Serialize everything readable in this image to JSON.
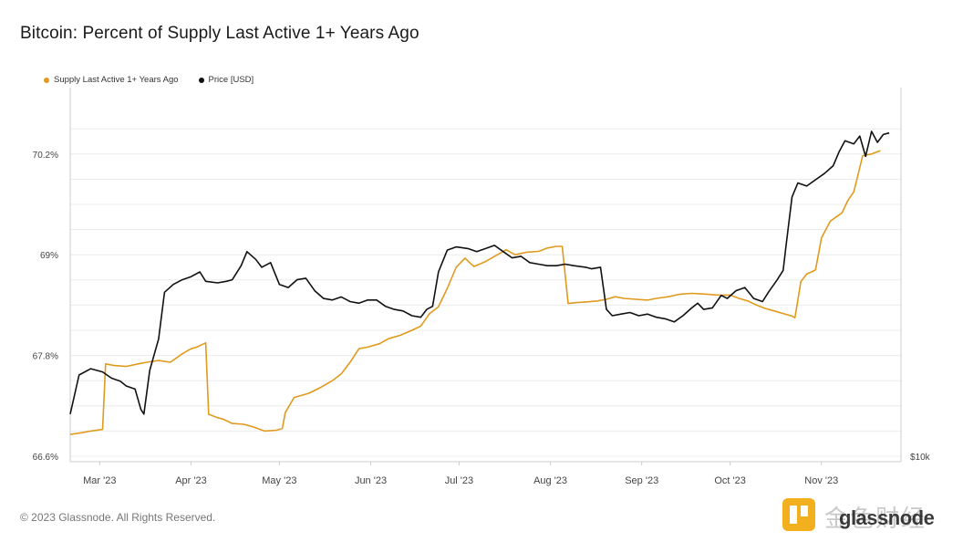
{
  "title": "Bitcoin: Percent of Supply Last Active 1+ Years Ago",
  "copyright": "© 2023 Glassnode. All Rights Reserved.",
  "watermark": {
    "cn_text": "金色财经",
    "brand_text": "glassnode"
  },
  "colors": {
    "supply": "#e09a1e",
    "price": "#111111",
    "grid": "#ececec",
    "axis": "#cccccc"
  },
  "chart_data": {
    "type": "line",
    "legend": [
      {
        "name": "Supply Last Active 1+ Years Ago",
        "color": "#e09a1e"
      },
      {
        "name": "Price [USD]",
        "color": "#111111"
      }
    ],
    "y_left": {
      "ticks": [
        "70.2%",
        "69%",
        "67.8%",
        "66.6%"
      ],
      "tick_values": [
        70.2,
        69.0,
        67.8,
        66.6
      ],
      "range": [
        66.6,
        70.6
      ]
    },
    "y_right": {
      "ticks": [
        "$10k"
      ]
    },
    "x_ticks": [
      "Mar '23",
      "Apr '23",
      "May '23",
      "Jun '23",
      "Jul '23",
      "Aug '23",
      "Sep '23",
      "Oct '23",
      "Nov '23"
    ],
    "x_tick_days": [
      0,
      31,
      61,
      92,
      122,
      153,
      184,
      214,
      245
    ],
    "x_range_days": [
      -10,
      272
    ],
    "price_range": [
      17000,
      38500
    ],
    "series": [
      {
        "name": "Supply Last Active 1+ Years Ago",
        "values": [
          [
            -10,
            66.86
          ],
          [
            -6,
            66.88
          ],
          [
            -3,
            66.9
          ],
          [
            1,
            66.92
          ],
          [
            2,
            67.7
          ],
          [
            5,
            67.68
          ],
          [
            9,
            67.67
          ],
          [
            13,
            67.7
          ],
          [
            16,
            67.72
          ],
          [
            20,
            67.74
          ],
          [
            24,
            67.72
          ],
          [
            28,
            67.82
          ],
          [
            31,
            67.88
          ],
          [
            33,
            67.9
          ],
          [
            36,
            67.95
          ],
          [
            37,
            67.1
          ],
          [
            40,
            67.06
          ],
          [
            42,
            67.04
          ],
          [
            45,
            66.99
          ],
          [
            49,
            66.98
          ],
          [
            52,
            66.95
          ],
          [
            56,
            66.9
          ],
          [
            60,
            66.91
          ],
          [
            62,
            66.93
          ],
          [
            63,
            67.12
          ],
          [
            66,
            67.3
          ],
          [
            71,
            67.35
          ],
          [
            75,
            67.42
          ],
          [
            79,
            67.5
          ],
          [
            82,
            67.58
          ],
          [
            85,
            67.72
          ],
          [
            88,
            67.88
          ],
          [
            91,
            67.9
          ],
          [
            95,
            67.94
          ],
          [
            98,
            68.0
          ],
          [
            102,
            68.04
          ],
          [
            106,
            68.1
          ],
          [
            109,
            68.15
          ],
          [
            112,
            68.3
          ],
          [
            115,
            68.38
          ],
          [
            118,
            68.6
          ],
          [
            121,
            68.85
          ],
          [
            124,
            68.96
          ],
          [
            127,
            68.86
          ],
          [
            131,
            68.92
          ],
          [
            135,
            69.0
          ],
          [
            138,
            69.06
          ],
          [
            141,
            69.0
          ],
          [
            145,
            69.03
          ],
          [
            149,
            69.04
          ],
          [
            152,
            69.08
          ],
          [
            155,
            69.1
          ],
          [
            157,
            69.1
          ],
          [
            159,
            68.42
          ],
          [
            162,
            68.43
          ],
          [
            166,
            68.44
          ],
          [
            169,
            68.45
          ],
          [
            172,
            68.47
          ],
          [
            175,
            68.5
          ],
          [
            178,
            68.48
          ],
          [
            182,
            68.47
          ],
          [
            186,
            68.46
          ],
          [
            189,
            68.48
          ],
          [
            193,
            68.5
          ],
          [
            197,
            68.53
          ],
          [
            201,
            68.54
          ],
          [
            206,
            68.53
          ],
          [
            210,
            68.52
          ],
          [
            214,
            68.52
          ],
          [
            217,
            68.48
          ],
          [
            220,
            68.45
          ],
          [
            223,
            68.4
          ],
          [
            226,
            68.36
          ],
          [
            229,
            68.33
          ],
          [
            232,
            68.3
          ],
          [
            235,
            68.27
          ],
          [
            236,
            68.25
          ],
          [
            238,
            68.68
          ],
          [
            240,
            68.77
          ],
          [
            243,
            68.82
          ],
          [
            245,
            69.2
          ],
          [
            248,
            69.4
          ],
          [
            250,
            69.45
          ],
          [
            252,
            69.5
          ],
          [
            254,
            69.65
          ],
          [
            256,
            69.75
          ],
          [
            259,
            70.18
          ],
          [
            262,
            70.2
          ],
          [
            265,
            70.24
          ]
        ]
      },
      {
        "name": "Price [USD]",
        "values": [
          [
            -10,
            19700
          ],
          [
            -7,
            22200
          ],
          [
            -3,
            22600
          ],
          [
            1,
            22400
          ],
          [
            4,
            22000
          ],
          [
            7,
            21800
          ],
          [
            9,
            21500
          ],
          [
            12,
            21300
          ],
          [
            14,
            20000
          ],
          [
            15,
            19700
          ],
          [
            17,
            22500
          ],
          [
            20,
            24500
          ],
          [
            22,
            27500
          ],
          [
            25,
            28000
          ],
          [
            28,
            28300
          ],
          [
            31,
            28500
          ],
          [
            34,
            28800
          ],
          [
            36,
            28200
          ],
          [
            40,
            28100
          ],
          [
            43,
            28200
          ],
          [
            45,
            28300
          ],
          [
            48,
            29200
          ],
          [
            50,
            30100
          ],
          [
            53,
            29600
          ],
          [
            55,
            29100
          ],
          [
            58,
            29400
          ],
          [
            61,
            28000
          ],
          [
            64,
            27800
          ],
          [
            67,
            28300
          ],
          [
            70,
            28400
          ],
          [
            73,
            27600
          ],
          [
            76,
            27100
          ],
          [
            79,
            27000
          ],
          [
            82,
            27200
          ],
          [
            85,
            26900
          ],
          [
            88,
            26800
          ],
          [
            91,
            27000
          ],
          [
            94,
            27000
          ],
          [
            97,
            26600
          ],
          [
            100,
            26400
          ],
          [
            103,
            26300
          ],
          [
            106,
            26000
          ],
          [
            109,
            25900
          ],
          [
            111,
            26400
          ],
          [
            113,
            26600
          ],
          [
            115,
            28800
          ],
          [
            118,
            30200
          ],
          [
            121,
            30400
          ],
          [
            125,
            30300
          ],
          [
            128,
            30100
          ],
          [
            131,
            30300
          ],
          [
            134,
            30500
          ],
          [
            137,
            30100
          ],
          [
            140,
            29700
          ],
          [
            143,
            29800
          ],
          [
            146,
            29400
          ],
          [
            149,
            29300
          ],
          [
            152,
            29200
          ],
          [
            155,
            29200
          ],
          [
            158,
            29300
          ],
          [
            161,
            29200
          ],
          [
            165,
            29100
          ],
          [
            167,
            29000
          ],
          [
            170,
            29100
          ],
          [
            172,
            26400
          ],
          [
            174,
            26000
          ],
          [
            177,
            26100
          ],
          [
            180,
            26200
          ],
          [
            183,
            26000
          ],
          [
            186,
            26100
          ],
          [
            189,
            25900
          ],
          [
            192,
            25800
          ],
          [
            195,
            25600
          ],
          [
            198,
            26000
          ],
          [
            201,
            26500
          ],
          [
            203,
            26800
          ],
          [
            205,
            26400
          ],
          [
            208,
            26500
          ],
          [
            211,
            27300
          ],
          [
            213,
            27100
          ],
          [
            216,
            27600
          ],
          [
            219,
            27800
          ],
          [
            222,
            27100
          ],
          [
            225,
            26900
          ],
          [
            227,
            27500
          ],
          [
            230,
            28300
          ],
          [
            232,
            28900
          ],
          [
            233,
            30500
          ],
          [
            235,
            33600
          ],
          [
            237,
            34500
          ],
          [
            240,
            34300
          ],
          [
            243,
            34700
          ],
          [
            246,
            35100
          ],
          [
            249,
            35600
          ],
          [
            251,
            36500
          ],
          [
            253,
            37200
          ],
          [
            256,
            37000
          ],
          [
            258,
            37500
          ],
          [
            260,
            36200
          ],
          [
            262,
            37800
          ],
          [
            264,
            37100
          ],
          [
            266,
            37600
          ],
          [
            268,
            37700
          ]
        ]
      }
    ]
  }
}
